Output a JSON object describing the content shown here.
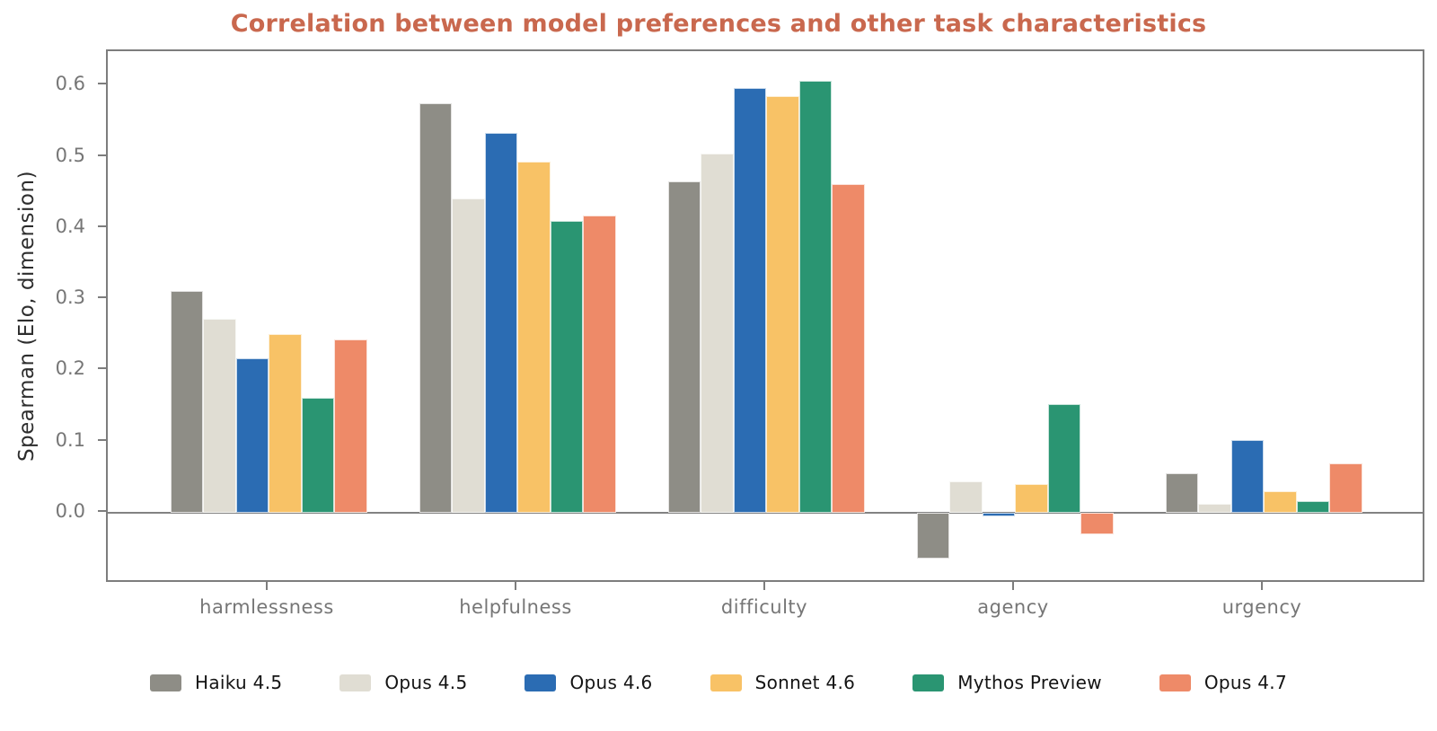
{
  "chart_data": {
    "type": "bar",
    "title": "Correlation between model preferences and other task characteristics",
    "ylabel": "Spearman  (Elo, dimension)",
    "xlabel": "",
    "categories": [
      "harmlessness",
      "helpfulness",
      "difficulty",
      "agency",
      "urgency"
    ],
    "series": [
      {
        "name": "Haiku 4.5",
        "color": "#8e8d86",
        "values": [
          0.311,
          0.575,
          0.465,
          -0.064,
          0.056
        ]
      },
      {
        "name": "Opus 4.5",
        "color": "#e0ddd3",
        "values": [
          0.273,
          0.441,
          0.505,
          0.044,
          0.013
        ]
      },
      {
        "name": "Opus 4.6",
        "color": "#2b6cb3",
        "values": [
          0.217,
          0.533,
          0.596,
          -0.005,
          0.102
        ]
      },
      {
        "name": "Sonnet 4.6",
        "color": "#f8c266",
        "values": [
          0.251,
          0.493,
          0.585,
          0.04,
          0.03
        ]
      },
      {
        "name": "Mythos Preview",
        "color": "#2a9572",
        "values": [
          0.161,
          0.41,
          0.607,
          0.153,
          0.016
        ]
      },
      {
        "name": "Opus 4.7",
        "color": "#ee8a68",
        "values": [
          0.243,
          0.417,
          0.462,
          -0.03,
          0.07
        ]
      }
    ],
    "y_ticks": [
      0.0,
      0.1,
      0.2,
      0.3,
      0.4,
      0.5,
      0.6
    ],
    "ylim": [
      -0.1,
      0.648
    ],
    "grid": false,
    "legend_position": "bottom",
    "zero_line": true
  },
  "colors": {
    "title": "#c9684e",
    "axis_frame": "#7d7d7d",
    "tick_label": "#767676",
    "legend_text": "#141414"
  }
}
